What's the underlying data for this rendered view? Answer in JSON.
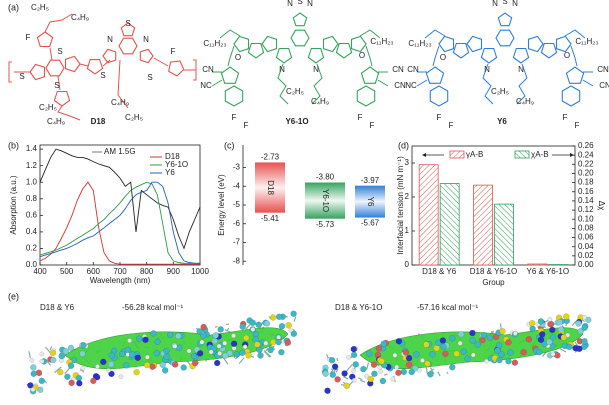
{
  "figure": {
    "molecules": {
      "panel": "(a)",
      "items": [
        {
          "name": "D18",
          "color": "#e8504f",
          "labels": [
            "C₂H₅",
            "C₄H₉",
            "F",
            "S",
            "S",
            "S",
            "S",
            "N",
            "S",
            "N",
            "S",
            "F",
            "C₂H₅",
            "C₄H₉",
            "C₄H₉",
            "C₂H₅"
          ]
        },
        {
          "name": "Y6-1O",
          "color": "#35a35f",
          "labels": [
            "N",
            "S",
            "N",
            "C₁₁H₂₃",
            "C₁₁H₂₃",
            "N",
            "N",
            "O",
            "O",
            "CN",
            "NC",
            "CN",
            "CN",
            "C₂H₅",
            "C₄H₉",
            "F",
            "F",
            "F",
            "F"
          ]
        },
        {
          "name": "Y6",
          "color": "#2f7fd8",
          "labels": [
            "N",
            "S",
            "N",
            "C₁₁H₂₃",
            "C₁₁H₂₃",
            "N",
            "N",
            "O",
            "O",
            "CN",
            "NC",
            "CN",
            "CN",
            "C₂H₅",
            "C₄H₉",
            "F",
            "F",
            "F",
            "F"
          ]
        }
      ]
    },
    "complexes": {
      "panel": "(e)",
      "items": [
        {
          "name": "D18 & Y6",
          "energy": "-56.28 kcal mol⁻¹"
        },
        {
          "name": "D18 & Y6-1O",
          "energy": "-57.16 kcal mol⁻¹"
        }
      ]
    }
  },
  "chart_data": [
    {
      "type": "line",
      "panel": "(b)",
      "x_label": "Wavelength (nm)",
      "y_label": "Absorption (a.u.)",
      "x": [
        400,
        420,
        440,
        460,
        480,
        500,
        520,
        540,
        560,
        580,
        600,
        620,
        640,
        660,
        680,
        700,
        720,
        740,
        760,
        780,
        800,
        820,
        840,
        860,
        880,
        900,
        920,
        940,
        960,
        980,
        1000
      ],
      "series": [
        {
          "name": "D18",
          "color": "#d9302c",
          "values": [
            0.05,
            0.08,
            0.13,
            0.2,
            0.32,
            0.45,
            0.6,
            0.78,
            0.92,
            1.0,
            0.9,
            0.45,
            0.15,
            0.05,
            0.02,
            0.01,
            0.01,
            0.01,
            0.01,
            0.01,
            0.01,
            0.01,
            0.01,
            0.01,
            0.01,
            0.01,
            0.01,
            0.01,
            0.01,
            0.01,
            0.01
          ]
        },
        {
          "name": "Y6-1O",
          "color": "#2a9a4a",
          "values": [
            0.12,
            0.14,
            0.16,
            0.18,
            0.21,
            0.24,
            0.28,
            0.32,
            0.36,
            0.4,
            0.44,
            0.5,
            0.55,
            0.62,
            0.68,
            0.75,
            0.83,
            0.9,
            0.94,
            0.97,
            1.0,
            0.98,
            0.85,
            0.5,
            0.15,
            0.05,
            0.03,
            0.02,
            0.02,
            0.02,
            0.02
          ]
        },
        {
          "name": "Y6",
          "color": "#1f5fbf",
          "values": [
            0.1,
            0.12,
            0.14,
            0.16,
            0.18,
            0.2,
            0.23,
            0.26,
            0.3,
            0.33,
            0.35,
            0.4,
            0.45,
            0.5,
            0.55,
            0.6,
            0.68,
            0.78,
            0.85,
            0.88,
            0.9,
            1.0,
            1.0,
            0.95,
            0.75,
            0.4,
            0.15,
            0.05,
            0.03,
            0.02,
            0.02
          ]
        }
      ],
      "reference": {
        "name": "AM 1.5G",
        "color": "#222222",
        "values": [
          1.0,
          1.15,
          1.3,
          1.4,
          1.38,
          1.35,
          1.32,
          1.3,
          1.3,
          1.28,
          1.25,
          1.22,
          1.2,
          1.18,
          1.12,
          1.05,
          0.95,
          1.0,
          0.4,
          0.9,
          0.85,
          0.8,
          0.75,
          0.72,
          0.7,
          0.55,
          0.35,
          0.2,
          0.4,
          0.55,
          0.7
        ]
      },
      "xlim": [
        400,
        1000
      ],
      "xticks": [
        400,
        500,
        600,
        700,
        800,
        900,
        1000
      ],
      "ylim": [
        0,
        1.45
      ],
      "yticks": [
        {
          "value": 0,
          "label": "0.0"
        },
        {
          "value": 0.2,
          "label": "0.2"
        },
        {
          "value": 0.4,
          "label": "0.4"
        },
        {
          "value": 0.6,
          "label": "0.6"
        },
        {
          "value": 0.8,
          "label": "0.8"
        },
        {
          "value": 1,
          "label": "1.0"
        },
        {
          "value": 1.2,
          "label": "1.2"
        },
        {
          "value": 1.4,
          "label": "1.4"
        }
      ],
      "legend": "upper right"
    },
    {
      "type": "energy",
      "panel": "(c)",
      "y_label": "Energy level (eV)",
      "ylim": [
        -8.2,
        -1.8
      ],
      "yticks": [
        -3,
        -4,
        -5,
        -6,
        -7,
        -8
      ],
      "levels": [
        {
          "name": "D18",
          "color": "#e8504f",
          "top": -2.73,
          "bottom": -5.41
        },
        {
          "name": "Y6-1O",
          "color": "#35a35f",
          "top": -3.8,
          "top_label": "-3.80",
          "bottom": -5.73
        },
        {
          "name": "Y6",
          "color": "#2f7fd8",
          "top": -3.97,
          "bottom": -5.67
        }
      ]
    },
    {
      "type": "bar",
      "panel": "(d)",
      "x_label": "Group",
      "y_label": "Interfacial tension (mN m⁻¹)",
      "y2_label": "Δχ",
      "categories": [
        "D18 & Y6",
        "D18 & Y6-1O",
        "Y6 & Y6-1O"
      ],
      "ylim": [
        0,
        3.5
      ],
      "yticks": [
        0,
        1,
        2,
        3
      ],
      "y2lim": [
        0,
        0.26
      ],
      "y2ticks": [
        {
          "value": 0,
          "label": "0.00"
        },
        {
          "value": 0.02,
          "label": "0.02"
        },
        {
          "value": 0.04,
          "label": "0.04"
        },
        {
          "value": 0.06,
          "label": "0.06"
        },
        {
          "value": 0.08,
          "label": "0.08"
        },
        {
          "value": 0.1,
          "label": "0.10"
        },
        {
          "value": 0.12,
          "label": "0.12"
        },
        {
          "value": 0.14,
          "label": "0.14"
        },
        {
          "value": 0.16,
          "label": "0.16"
        },
        {
          "value": 0.18,
          "label": "0.18"
        },
        {
          "value": 0.2,
          "label": "0.20"
        },
        {
          "value": 0.22,
          "label": "0.22"
        },
        {
          "value": 0.24,
          "label": "0.24"
        },
        {
          "value": 0.26,
          "label": "0.26"
        }
      ],
      "series": [
        {
          "name": "γA-B",
          "color": "#e05555",
          "values": [
            2.95,
            2.35,
            0.03
          ]
        },
        {
          "name": "χA-B",
          "color": "#2e9e60",
          "axis": "y2",
          "values": [
            0.178,
            0.133,
            0.001
          ]
        }
      ],
      "legend": "top"
    }
  ]
}
